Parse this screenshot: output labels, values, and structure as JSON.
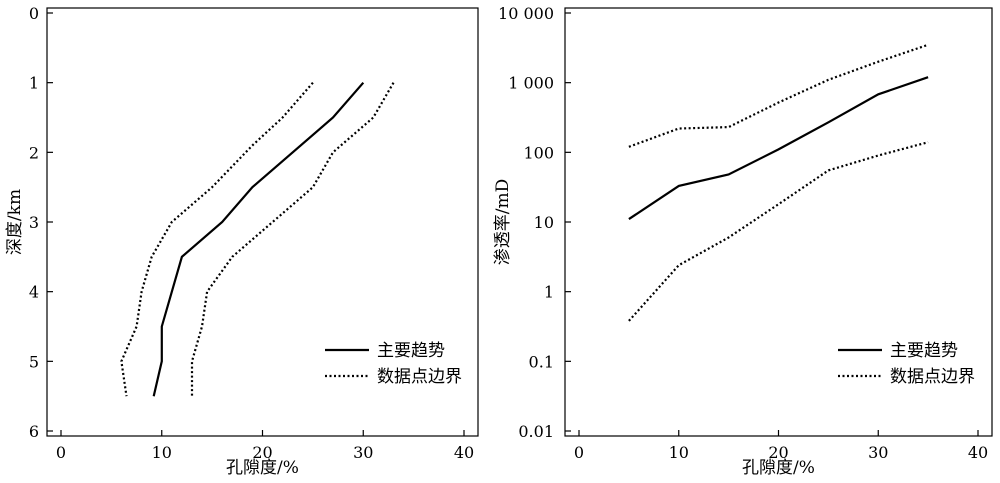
{
  "chart_data": [
    {
      "type": "line",
      "x_axis": {
        "label": "孔隙度/%",
        "lim": [
          0,
          40
        ],
        "ticks": [
          0,
          10,
          20,
          30,
          40
        ]
      },
      "y_axis": {
        "label": "深度/km",
        "lim": [
          0,
          6
        ],
        "ticks": [
          0,
          1,
          2,
          3,
          4,
          5,
          6
        ],
        "inverted": true
      },
      "grid": false,
      "legend": {
        "position": "bottom-right"
      },
      "series": [
        {
          "name": "主要趋势",
          "style": "solid",
          "points": [
            [
              30,
              1
            ],
            [
              27,
              1.5
            ],
            [
              19,
              2.5
            ],
            [
              16,
              3
            ],
            [
              12,
              3.5
            ],
            [
              10,
              4.5
            ],
            [
              10,
              5
            ],
            [
              9.2,
              5.5
            ]
          ]
        },
        {
          "name": "数据点边界",
          "style": "dotted",
          "points": [
            [
              25,
              1
            ],
            [
              22,
              1.5
            ],
            [
              19,
              1.9
            ],
            [
              15,
              2.5
            ],
            [
              11,
              3
            ],
            [
              9,
              3.5
            ],
            [
              8,
              4
            ],
            [
              7.5,
              4.5
            ],
            [
              6,
              5
            ],
            [
              6.5,
              5.5
            ]
          ]
        },
        {
          "name": "数据点边界",
          "style": "dotted",
          "legend": false,
          "points": [
            [
              33,
              1
            ],
            [
              31,
              1.5
            ],
            [
              27,
              2
            ],
            [
              25,
              2.5
            ],
            [
              21,
              3
            ],
            [
              17,
              3.5
            ],
            [
              14.5,
              4
            ],
            [
              14,
              4.5
            ],
            [
              13,
              5
            ],
            [
              13,
              5.5
            ]
          ]
        }
      ]
    },
    {
      "type": "line",
      "x_axis": {
        "label": "孔隙度/%",
        "lim": [
          0,
          40
        ],
        "ticks": [
          0,
          10,
          20,
          30,
          40
        ]
      },
      "y_axis": {
        "label": "渗透率/mD",
        "scale": "log",
        "lim": [
          0.01,
          10000
        ],
        "ticks": [
          0.01,
          0.1,
          1,
          10,
          100,
          1000,
          10000
        ],
        "tick_labels": [
          "0.01",
          "0.1",
          "1",
          "10",
          "100",
          "1 000",
          "10 000"
        ]
      },
      "grid": false,
      "legend": {
        "position": "bottom-right"
      },
      "series": [
        {
          "name": "主要趋势",
          "style": "solid",
          "points": [
            [
              5,
              11
            ],
            [
              10,
              33
            ],
            [
              15,
              48
            ],
            [
              20,
              110
            ],
            [
              25,
              270
            ],
            [
              30,
              680
            ],
            [
              35,
              1200
            ]
          ]
        },
        {
          "name": "数据点边界",
          "style": "dotted",
          "points": [
            [
              5,
              120
            ],
            [
              10,
              220
            ],
            [
              15,
              230
            ],
            [
              20,
              520
            ],
            [
              25,
              1100
            ],
            [
              30,
              2000
            ],
            [
              35,
              3500
            ]
          ]
        },
        {
          "name": "数据点边界",
          "style": "dotted",
          "legend": false,
          "points": [
            [
              5,
              0.38
            ],
            [
              10,
              2.4
            ],
            [
              15,
              6
            ],
            [
              20,
              18
            ],
            [
              25,
              55
            ],
            [
              30,
              90
            ],
            [
              35,
              140
            ]
          ]
        }
      ]
    }
  ]
}
